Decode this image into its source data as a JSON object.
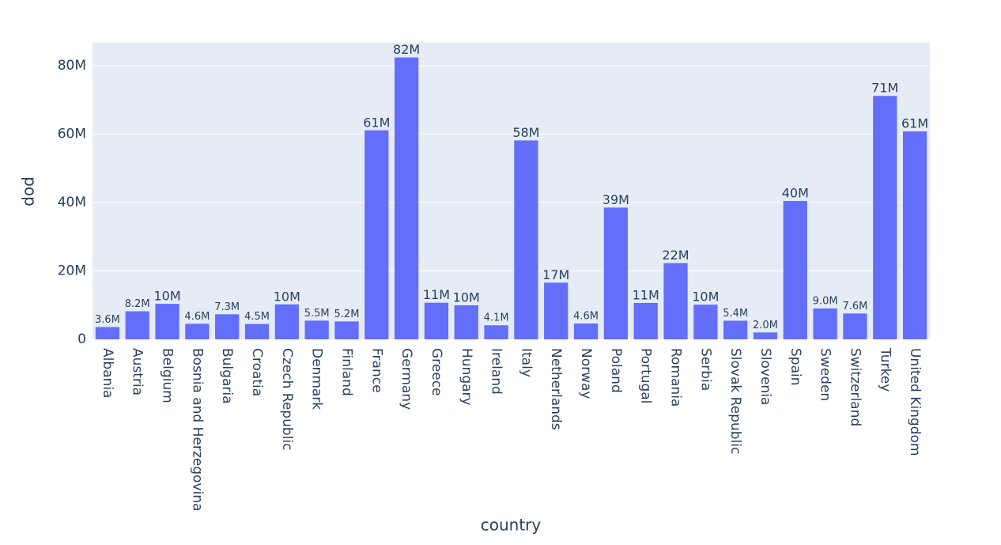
{
  "chart_data": {
    "type": "bar",
    "x_label": "country",
    "y_label": "pop",
    "categories": [
      "Albania",
      "Austria",
      "Belgium",
      "Bosnia and Herzegovina",
      "Bulgaria",
      "Croatia",
      "Czech Republic",
      "Denmark",
      "Finland",
      "France",
      "Germany",
      "Greece",
      "Hungary",
      "Ireland",
      "Italy",
      "Netherlands",
      "Norway",
      "Poland",
      "Portugal",
      "Romania",
      "Serbia",
      "Slovak Republic",
      "Slovenia",
      "Spain",
      "Sweden",
      "Switzerland",
      "Turkey",
      "United Kingdom"
    ],
    "values": [
      3600523,
      8199783,
      10392226,
      4552198,
      7322858,
      4493312,
      10228744,
      5468120,
      5238460,
      61083916,
      82400996,
      10706290,
      9956108,
      4109086,
      58147733,
      16570613,
      4627926,
      38518241,
      10642836,
      22276056,
      10150265,
      5447502,
      2009245,
      40448191,
      9031088,
      7554661,
      71158647,
      60776238
    ],
    "value_labels": [
      "3.6M",
      "8.2M",
      "10M",
      "4.6M",
      "7.3M",
      "4.5M",
      "10M",
      "5.5M",
      "5.2M",
      "61M",
      "82M",
      "11M",
      "10M",
      "4.1M",
      "58M",
      "17M",
      "4.6M",
      "39M",
      "11M",
      "22M",
      "10M",
      "5.4M",
      "2.0M",
      "40M",
      "9.0M",
      "7.6M",
      "71M",
      "61M"
    ],
    "color": "#636efa",
    "ylim": [
      0,
      86700000
    ],
    "yticks": [
      0,
      {
        "value": 20000000,
        "label": "20M"
      },
      {
        "value": 40000000,
        "label": "40M"
      },
      {
        "value": 60000000,
        "label": "60M"
      },
      {
        "value": 80000000,
        "label": "80M"
      }
    ],
    "grid": true
  }
}
